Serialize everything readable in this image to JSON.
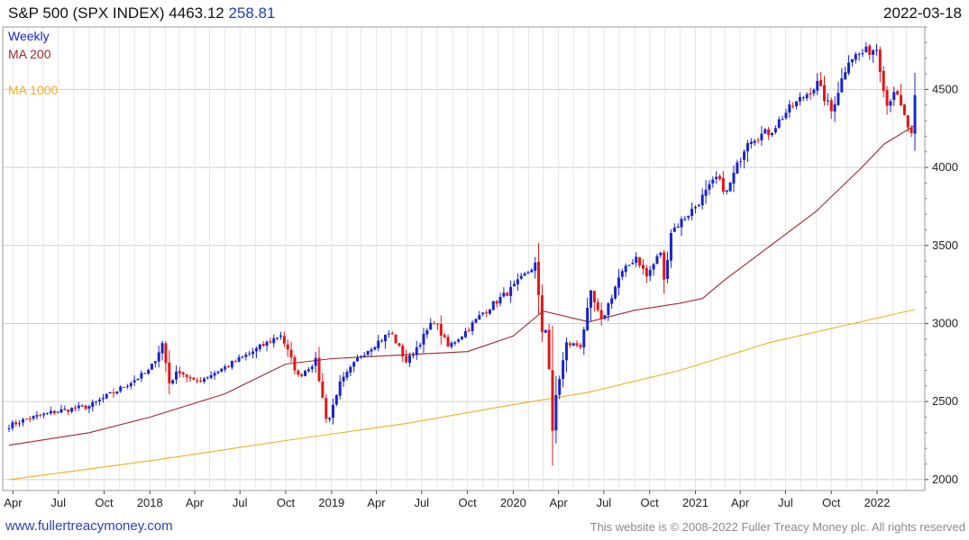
{
  "header": {
    "symbol": "S&P 500 (SPX INDEX)",
    "last": "4463.12",
    "change": "258.81",
    "date": "2022-03-18"
  },
  "legend": {
    "period": "Weekly",
    "ma200": "MA 200",
    "ma1000": "MA 1000"
  },
  "footer": {
    "site": "www.fullertreacymoney.com",
    "copyright": "This website is © 2008-2022 Fuller Treacy Money plc. All rights reserved"
  },
  "colors": {
    "up": "#1a24c8",
    "down": "#e01818",
    "ma200": "#a0282a",
    "ma1000": "#f0b020",
    "grid": "#d8d8d8",
    "legend_period": "#1a24c8",
    "legend_ma200": "#a0282a",
    "legend_ma1000": "#f0b020"
  },
  "chart_data": {
    "type": "candlestick",
    "ylim": [
      1930,
      4900
    ],
    "yticks": [
      2000,
      2500,
      3000,
      3500,
      4000,
      4500
    ],
    "xticks": [
      "Apr",
      "Jul",
      "Oct",
      "2018",
      "Apr",
      "Jul",
      "Oct",
      "2019",
      "Apr",
      "Jul",
      "Oct",
      "2020",
      "Apr",
      "Jul",
      "Oct",
      "2021",
      "Apr",
      "Jul",
      "Oct",
      "2022"
    ],
    "x_start": "2017-03-24",
    "x_end": "2022-03-18",
    "close_anchors": [
      [
        "2017-03-24",
        2345
      ],
      [
        "2017-05-01",
        2390
      ],
      [
        "2017-07-01",
        2440
      ],
      [
        "2017-09-01",
        2470
      ],
      [
        "2017-11-01",
        2580
      ],
      [
        "2018-01-01",
        2700
      ],
      [
        "2018-01-26",
        2872
      ],
      [
        "2018-02-09",
        2620
      ],
      [
        "2018-03-01",
        2700
      ],
      [
        "2018-04-01",
        2620
      ],
      [
        "2018-06-01",
        2720
      ],
      [
        "2018-08-01",
        2830
      ],
      [
        "2018-09-21",
        2930
      ],
      [
        "2018-10-26",
        2660
      ],
      [
        "2018-11-30",
        2760
      ],
      [
        "2018-12-24",
        2350
      ],
      [
        "2019-01-15",
        2600
      ],
      [
        "2019-03-01",
        2800
      ],
      [
        "2019-04-30",
        2945
      ],
      [
        "2019-06-01",
        2750
      ],
      [
        "2019-07-26",
        3020
      ],
      [
        "2019-08-23",
        2850
      ],
      [
        "2019-10-01",
        2960
      ],
      [
        "2019-11-01",
        3070
      ],
      [
        "2020-01-01",
        3230
      ],
      [
        "2020-02-14",
        3380
      ],
      [
        "2020-02-28",
        2950
      ],
      [
        "2020-03-06",
        2970
      ],
      [
        "2020-03-13",
        2710
      ],
      [
        "2020-03-20",
        2300
      ],
      [
        "2020-03-27",
        2540
      ],
      [
        "2020-04-17",
        2870
      ],
      [
        "2020-05-15",
        2860
      ],
      [
        "2020-06-05",
        3190
      ],
      [
        "2020-06-26",
        3010
      ],
      [
        "2020-08-01",
        3300
      ],
      [
        "2020-09-04",
        3430
      ],
      [
        "2020-09-25",
        3300
      ],
      [
        "2020-10-23",
        3460
      ],
      [
        "2020-10-30",
        3270
      ],
      [
        "2020-11-13",
        3590
      ],
      [
        "2021-01-01",
        3750
      ],
      [
        "2021-02-12",
        3930
      ],
      [
        "2021-03-05",
        3840
      ],
      [
        "2021-04-16",
        4180
      ],
      [
        "2021-06-01",
        4230
      ],
      [
        "2021-07-01",
        4350
      ],
      [
        "2021-09-03",
        4535
      ],
      [
        "2021-10-01",
        4360
      ],
      [
        "2021-11-05",
        4700
      ],
      [
        "2021-12-31",
        4766
      ],
      [
        "2022-01-21",
        4400
      ],
      [
        "2022-02-04",
        4500
      ],
      [
        "2022-03-11",
        4200
      ],
      [
        "2022-03-18",
        4463
      ]
    ],
    "ma200": [
      [
        "2017-03-24",
        2220
      ],
      [
        "2017-09-01",
        2300
      ],
      [
        "2018-01-01",
        2400
      ],
      [
        "2018-06-01",
        2550
      ],
      [
        "2018-10-01",
        2740
      ],
      [
        "2019-01-01",
        2775
      ],
      [
        "2019-06-01",
        2800
      ],
      [
        "2019-10-01",
        2820
      ],
      [
        "2020-01-01",
        2920
      ],
      [
        "2020-03-01",
        3080
      ],
      [
        "2020-06-01",
        3010
      ],
      [
        "2020-09-01",
        3085
      ],
      [
        "2020-12-01",
        3130
      ],
      [
        "2021-01-15",
        3160
      ],
      [
        "2021-03-01",
        3280
      ],
      [
        "2021-06-01",
        3500
      ],
      [
        "2021-09-01",
        3720
      ],
      [
        "2021-12-01",
        4000
      ],
      [
        "2022-01-15",
        4150
      ],
      [
        "2022-03-18",
        4270
      ]
    ],
    "ma1000": [
      [
        "2017-03-24",
        2000
      ],
      [
        "2018-01-01",
        2120
      ],
      [
        "2018-10-01",
        2250
      ],
      [
        "2019-06-01",
        2360
      ],
      [
        "2020-01-01",
        2480
      ],
      [
        "2020-06-01",
        2560
      ],
      [
        "2020-12-01",
        2700
      ],
      [
        "2021-06-01",
        2880
      ],
      [
        "2022-03-18",
        3090
      ]
    ]
  }
}
